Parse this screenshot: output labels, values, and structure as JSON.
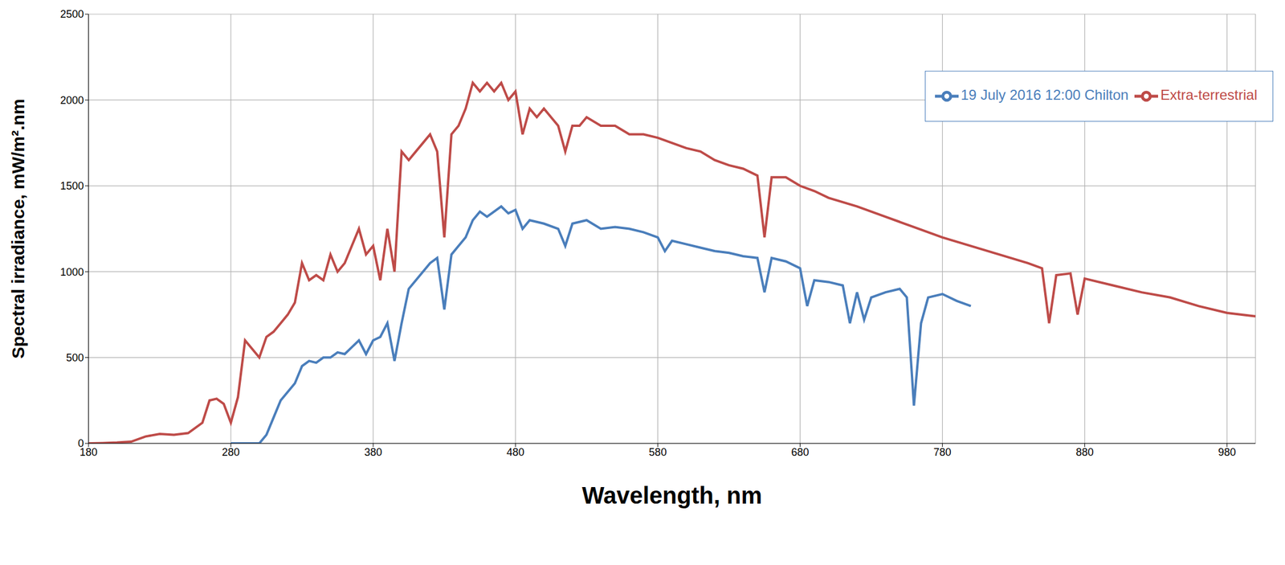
{
  "chart_data": {
    "type": "line",
    "x_label": "Wavelength, nm",
    "y_label": "Spectral irradiance, mW/m².nm",
    "xlim": [
      180,
      1000
    ],
    "xticks": [
      180,
      280,
      380,
      480,
      580,
      680,
      780,
      880,
      980
    ],
    "ylim": [
      0,
      2500
    ],
    "yticks": [
      0,
      500,
      1000,
      1500,
      2000,
      2500
    ],
    "grid": true,
    "legend": "top right",
    "series": [
      {
        "name": "19 July 2016 12:00 Chilton",
        "color": "#4a7ebb",
        "x": [
          280,
          300,
          305,
          310,
          315,
          320,
          325,
          330,
          335,
          340,
          345,
          350,
          355,
          360,
          365,
          370,
          375,
          380,
          385,
          390,
          395,
          400,
          405,
          410,
          415,
          420,
          425,
          430,
          435,
          440,
          445,
          450,
          455,
          460,
          465,
          470,
          475,
          480,
          485,
          490,
          500,
          510,
          515,
          520,
          530,
          540,
          550,
          560,
          570,
          580,
          585,
          590,
          600,
          610,
          620,
          630,
          640,
          650,
          655,
          660,
          670,
          680,
          685,
          690,
          700,
          710,
          715,
          720,
          725,
          730,
          740,
          750,
          755,
          760,
          765,
          770,
          780,
          790,
          800
        ],
        "values": [
          0,
          0,
          50,
          150,
          250,
          300,
          350,
          450,
          480,
          470,
          500,
          500,
          530,
          520,
          560,
          600,
          520,
          600,
          620,
          700,
          480,
          700,
          900,
          950,
          1000,
          1050,
          1080,
          780,
          1100,
          1150,
          1200,
          1300,
          1350,
          1320,
          1350,
          1380,
          1340,
          1360,
          1250,
          1300,
          1280,
          1250,
          1150,
          1280,
          1300,
          1250,
          1260,
          1250,
          1230,
          1200,
          1120,
          1180,
          1160,
          1140,
          1120,
          1110,
          1090,
          1080,
          880,
          1080,
          1060,
          1020,
          800,
          950,
          940,
          920,
          700,
          880,
          720,
          850,
          880,
          900,
          850,
          220,
          700,
          850,
          870,
          830,
          800
        ]
      },
      {
        "name": "Extra-terrestrial",
        "color": "#be4b48",
        "x": [
          180,
          190,
          200,
          210,
          220,
          230,
          240,
          250,
          260,
          265,
          270,
          275,
          280,
          285,
          290,
          295,
          300,
          305,
          310,
          315,
          320,
          325,
          330,
          335,
          340,
          345,
          350,
          355,
          360,
          365,
          370,
          375,
          380,
          385,
          390,
          395,
          400,
          405,
          410,
          415,
          420,
          425,
          430,
          435,
          440,
          445,
          450,
          455,
          460,
          465,
          470,
          475,
          480,
          485,
          490,
          495,
          500,
          505,
          510,
          515,
          520,
          525,
          530,
          540,
          550,
          560,
          570,
          580,
          590,
          600,
          610,
          620,
          630,
          640,
          650,
          655,
          660,
          670,
          680,
          690,
          700,
          720,
          740,
          760,
          780,
          800,
          820,
          840,
          850,
          855,
          860,
          870,
          875,
          880,
          900,
          920,
          940,
          960,
          980,
          1000
        ],
        "values": [
          0,
          2,
          5,
          10,
          40,
          55,
          50,
          60,
          120,
          250,
          260,
          230,
          120,
          270,
          600,
          550,
          500,
          620,
          650,
          700,
          750,
          820,
          1050,
          950,
          980,
          950,
          1100,
          1000,
          1050,
          1150,
          1250,
          1100,
          1150,
          950,
          1250,
          1000,
          1700,
          1650,
          1700,
          1750,
          1800,
          1700,
          1200,
          1800,
          1850,
          1950,
          2100,
          2050,
          2100,
          2050,
          2100,
          2000,
          2050,
          1800,
          1950,
          1900,
          1950,
          1900,
          1850,
          1700,
          1850,
          1850,
          1900,
          1850,
          1850,
          1800,
          1800,
          1780,
          1750,
          1720,
          1700,
          1650,
          1620,
          1600,
          1560,
          1200,
          1550,
          1550,
          1500,
          1470,
          1430,
          1380,
          1320,
          1260,
          1200,
          1150,
          1100,
          1050,
          1020,
          700,
          980,
          990,
          750,
          960,
          920,
          880,
          850,
          800,
          760,
          740
        ]
      }
    ]
  }
}
